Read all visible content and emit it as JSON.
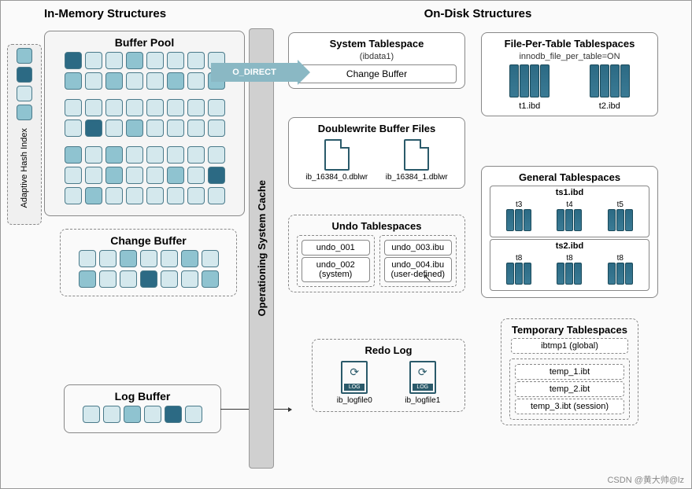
{
  "colors": {
    "cell_light": "#d4e8ed",
    "cell_mid": "#8fc3d0",
    "cell_dark": "#2c6a84",
    "box_border": "#888888",
    "arrow_fill": "#8ab8c4"
  },
  "left": {
    "title": "In-Memory Structures",
    "buffer_pool": {
      "title": "Buffer Pool",
      "rows": [
        [
          "d",
          "l",
          "l",
          "m",
          "l",
          "l",
          "l",
          "l"
        ],
        [
          "m",
          "l",
          "m",
          "l",
          "l",
          "m",
          "l",
          "m"
        ],
        [
          "l",
          "l",
          "l",
          "l",
          "l",
          "l",
          "l",
          "l"
        ],
        [
          "l",
          "d",
          "l",
          "m",
          "l",
          "l",
          "l",
          "l"
        ],
        [
          "m",
          "l",
          "m",
          "l",
          "l",
          "l",
          "l",
          "l"
        ],
        [
          "l",
          "l",
          "m",
          "l",
          "l",
          "m",
          "l",
          "d"
        ],
        [
          "l",
          "m",
          "l",
          "l",
          "l",
          "l",
          "l",
          "l"
        ]
      ]
    },
    "ahi": {
      "label": "Adaptive Hash Index",
      "cells": [
        "m",
        "d",
        "l",
        "m"
      ]
    },
    "change_buffer": {
      "title": "Change Buffer",
      "rows": [
        [
          "l",
          "l",
          "m",
          "l",
          "l",
          "m",
          "l"
        ],
        [
          "m",
          "l",
          "l",
          "d",
          "l",
          "l",
          "m"
        ]
      ]
    },
    "log_buffer": {
      "title": "Log Buffer",
      "row": [
        "l",
        "l",
        "m",
        "l",
        "d",
        "l"
      ]
    }
  },
  "middle": {
    "os_cache": "Operationing System Cache",
    "o_direct": "O_DIRECT"
  },
  "right": {
    "title": "On-Disk Structures",
    "system_ts": {
      "title": "System Tablespace",
      "sub": "(ibdata1)",
      "inner": "Change Buffer"
    },
    "fpt_ts": {
      "title": "File-Per-Table Tablespaces",
      "sub": "innodb_file_per_table=ON",
      "files": [
        "t1.ibd",
        "t2.ibd"
      ]
    },
    "dbw": {
      "title": "Doublewrite Buffer Files",
      "files": [
        "ib_16384_0.dblwr",
        "ib_16384_1.dblwr"
      ]
    },
    "general_ts": {
      "title": "General Tablespaces",
      "groups": [
        {
          "name": "ts1.ibd",
          "tables": [
            "t3",
            "t4",
            "t5"
          ]
        },
        {
          "name": "ts2.ibd",
          "tables": [
            "t8",
            "t8",
            "t8"
          ]
        }
      ]
    },
    "undo_ts": {
      "title": "Undo Tablespaces",
      "system": [
        "undo_001",
        "undo_002 (system)"
      ],
      "user": [
        "undo_003.ibu",
        "undo_004.ibu (user-defined)"
      ]
    },
    "redo": {
      "title": "Redo Log",
      "files": [
        "ib_logfile0",
        "ib_logfile1"
      ]
    },
    "temp_ts": {
      "title": "Temporary Tablespaces",
      "global": "ibtmp1 (global)",
      "session": [
        "temp_1.ibt",
        "temp_2.ibt",
        "temp_3.ibt (session)"
      ]
    }
  },
  "watermark": "CSDN @黄大帅@lz"
}
